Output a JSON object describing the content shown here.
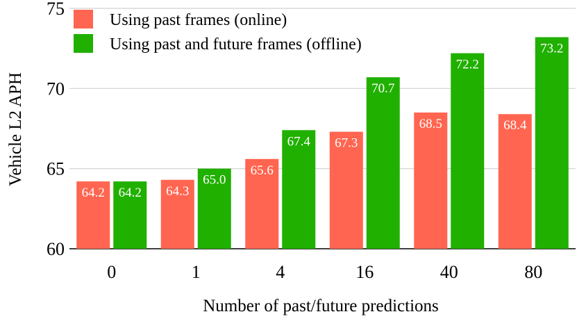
{
  "chart_data": {
    "type": "bar",
    "title": "",
    "xlabel": "Number of past/future predictions",
    "ylabel": "Vehicle L2 APH",
    "categories": [
      "0",
      "1",
      "4",
      "16",
      "40",
      "80"
    ],
    "ylim": [
      60,
      75
    ],
    "yticks": [
      60,
      65,
      70,
      75
    ],
    "grid": true,
    "legend_position": "top-left",
    "series": [
      {
        "name": "Using past frames (online)",
        "color": "#FF6550",
        "values": [
          64.2,
          64.3,
          65.6,
          67.3,
          68.5,
          68.4
        ]
      },
      {
        "name": "Using past and future frames (offline)",
        "color": "#20B000",
        "values": [
          64.2,
          65.0,
          67.4,
          70.7,
          72.2,
          73.2
        ]
      }
    ]
  }
}
